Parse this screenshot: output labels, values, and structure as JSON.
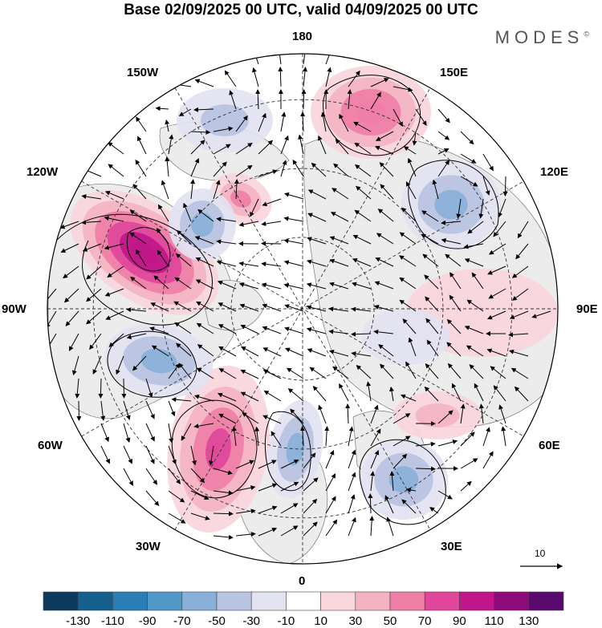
{
  "title": "Base 02/09/2025 00 UTC, valid 04/09/2025 00 UTC",
  "brand": "MODES",
  "brand_mark": "©",
  "longitude_labels": {
    "n180": "180",
    "e150": "150E",
    "w150": "150W",
    "e120": "120E",
    "w120": "120W",
    "e90": "90E",
    "w90": "90W",
    "e60": "60E",
    "w60": "60W",
    "e30": "30E",
    "w30": "30W",
    "s0": "0"
  },
  "wind_reference": {
    "value": "10"
  },
  "colorbar": {
    "labels": [
      "-130",
      "-110",
      "-90",
      "-70",
      "-50",
      "-30",
      "-10",
      "10",
      "30",
      "50",
      "70",
      "90",
      "110",
      "130"
    ],
    "colors": [
      "#0d3b5e",
      "#155f8c",
      "#2a7db5",
      "#4f98c8",
      "#8ab0d9",
      "#b9c3e2",
      "#e2e2f1",
      "#ffffff",
      "#f8d6dc",
      "#f4b3c2",
      "#ef7fa6",
      "#e0479a",
      "#c0168a",
      "#8e0b7c",
      "#5a0a6e"
    ]
  },
  "map_colors": {
    "land": "#ececec",
    "ocean": "#ffffff",
    "grid": "#333333",
    "boundary": "#000000"
  },
  "anomaly_centers": [
    {
      "id": "pos-alaska",
      "value": 110
    },
    {
      "id": "pos-bering",
      "value": 70
    },
    {
      "id": "pos-atlantic",
      "value": 80
    },
    {
      "id": "pos-beaufort",
      "value": 60
    },
    {
      "id": "pos-caspian",
      "value": 40
    },
    {
      "id": "pos-siberia",
      "value": 20
    },
    {
      "id": "neg-gulf-alaska",
      "value": -30
    },
    {
      "id": "neg-yukon",
      "value": -55
    },
    {
      "id": "neg-hudson",
      "value": -60
    },
    {
      "id": "neg-kamchatka",
      "value": -55
    },
    {
      "id": "neg-norway",
      "value": -60
    },
    {
      "id": "neg-barents",
      "value": -60
    },
    {
      "id": "neg-taimyr",
      "value": -20
    }
  ]
}
